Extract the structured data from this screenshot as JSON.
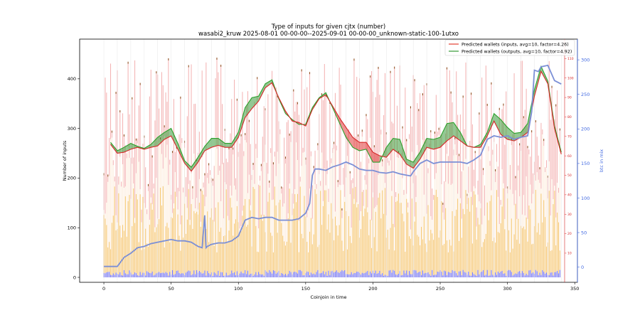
{
  "chart_data": {
    "type": "bar",
    "title": "Type of inputs for given cjtx (number)",
    "subtitle": "wasabi2_kruw 2025-08-01 00-00-00--2025-09-01 00-00-00_unknown-static-100-1utxo",
    "xlabel": "Coinjoin in time",
    "ylabel": "Number of inputs",
    "y2label": "btc in mix",
    "xlim": [
      -18,
      352
    ],
    "ylim": [
      -10,
      480
    ],
    "y2lim": [
      -22,
      330
    ],
    "y3lim": [
      -5,
      120
    ],
    "x_ticks": [
      0,
      50,
      100,
      150,
      200,
      250,
      300,
      350
    ],
    "y_ticks": [
      0,
      100,
      200,
      300,
      400
    ],
    "y2_ticks": [
      0,
      50,
      100,
      150,
      200,
      250,
      300
    ],
    "y3_ticks": [
      10,
      20,
      30,
      40,
      50,
      60,
      70,
      80,
      90,
      100,
      110
    ],
    "legend_position": "top-right",
    "legend": [
      {
        "label": "Predicted wallets (inputs, avg=10, factor=4.26)",
        "color": "#e8665a"
      },
      {
        "label": "Predicted wallets (outputs, avg=10, factor=4.92)",
        "color": "#5cad5c"
      }
    ],
    "colors": {
      "inputs_line": "#d62728",
      "outputs_line": "#2ca02c",
      "btc_line": "#7b8fd6",
      "bar_base": "#6666ee",
      "bar_orange": "#f5c267",
      "bar_cream": "#fdeede",
      "bar_pink": "#f4b3b3",
      "bar_dark": "#8b4513"
    },
    "predicted_wallets_x": [
      5,
      10,
      15,
      20,
      25,
      30,
      35,
      40,
      45,
      50,
      55,
      60,
      65,
      70,
      75,
      80,
      85,
      90,
      95,
      100,
      105,
      110,
      115,
      120,
      125,
      130,
      135,
      140,
      145,
      150,
      155,
      160,
      165,
      170,
      175,
      180,
      185,
      190,
      195,
      200,
      205,
      210,
      215,
      220,
      225,
      230,
      235,
      240,
      245,
      250,
      255,
      260,
      265,
      270,
      275,
      280,
      285,
      290,
      295,
      300,
      305,
      310,
      315,
      320,
      325,
      330,
      335,
      340
    ],
    "predicted_wallets_inputs": [
      268,
      250,
      252,
      258,
      262,
      258,
      262,
      265,
      278,
      285,
      258,
      230,
      214,
      232,
      255,
      262,
      266,
      262,
      262,
      282,
      322,
      340,
      355,
      382,
      392,
      362,
      335,
      315,
      312,
      305,
      338,
      360,
      368,
      345,
      322,
      302,
      282,
      272,
      272,
      252,
      245,
      242,
      258,
      248,
      228,
      220,
      238,
      262,
      258,
      262,
      275,
      285,
      275,
      265,
      262,
      262,
      285,
      315,
      288,
      278,
      275,
      282,
      292,
      365,
      415,
      390,
      300,
      248
    ],
    "predicted_wallets_outputs": [
      272,
      255,
      262,
      270,
      264,
      260,
      268,
      282,
      292,
      300,
      270,
      235,
      222,
      242,
      264,
      280,
      280,
      270,
      270,
      292,
      342,
      362,
      365,
      390,
      398,
      360,
      330,
      318,
      308,
      308,
      342,
      362,
      372,
      342,
      312,
      282,
      262,
      255,
      258,
      232,
      232,
      262,
      280,
      278,
      238,
      232,
      252,
      280,
      278,
      282,
      310,
      312,
      292,
      265,
      262,
      268,
      292,
      330,
      318,
      302,
      290,
      292,
      310,
      378,
      425,
      395,
      305,
      252
    ],
    "btc_in_mix_x": [
      0,
      10,
      15,
      20,
      25,
      30,
      35,
      40,
      45,
      50,
      55,
      60,
      65,
      70,
      73,
      75,
      76,
      77,
      80,
      85,
      90,
      95,
      100,
      105,
      110,
      115,
      120,
      125,
      130,
      135,
      140,
      145,
      150,
      153,
      155,
      157,
      160,
      165,
      170,
      175,
      180,
      185,
      190,
      195,
      200,
      205,
      210,
      215,
      220,
      225,
      228,
      230,
      235,
      240,
      245,
      250,
      255,
      260,
      265,
      270,
      275,
      280,
      285,
      290,
      295,
      300,
      305,
      310,
      315,
      318,
      320,
      323,
      325,
      330,
      335,
      340
    ],
    "btc_in_mix": [
      1,
      1,
      14,
      20,
      28,
      30,
      34,
      36,
      38,
      40,
      38,
      38,
      36,
      30,
      28,
      75,
      28,
      30,
      33,
      35,
      35,
      38,
      45,
      68,
      72,
      70,
      72,
      72,
      68,
      68,
      68,
      70,
      78,
      92,
      133,
      142,
      142,
      140,
      145,
      148,
      152,
      148,
      142,
      140,
      140,
      137,
      136,
      138,
      135,
      133,
      132,
      138,
      150,
      155,
      150,
      152,
      152,
      152,
      152,
      150,
      155,
      162,
      185,
      190,
      188,
      190,
      185,
      188,
      190,
      225,
      285,
      283,
      290,
      292,
      270,
      265
    ],
    "bars": {
      "count": 340,
      "base_range": [
        3,
        15
      ],
      "orange_range": [
        50,
        185
      ],
      "cream_range": [
        95,
        290
      ],
      "pink_range": [
        130,
        440
      ]
    }
  }
}
